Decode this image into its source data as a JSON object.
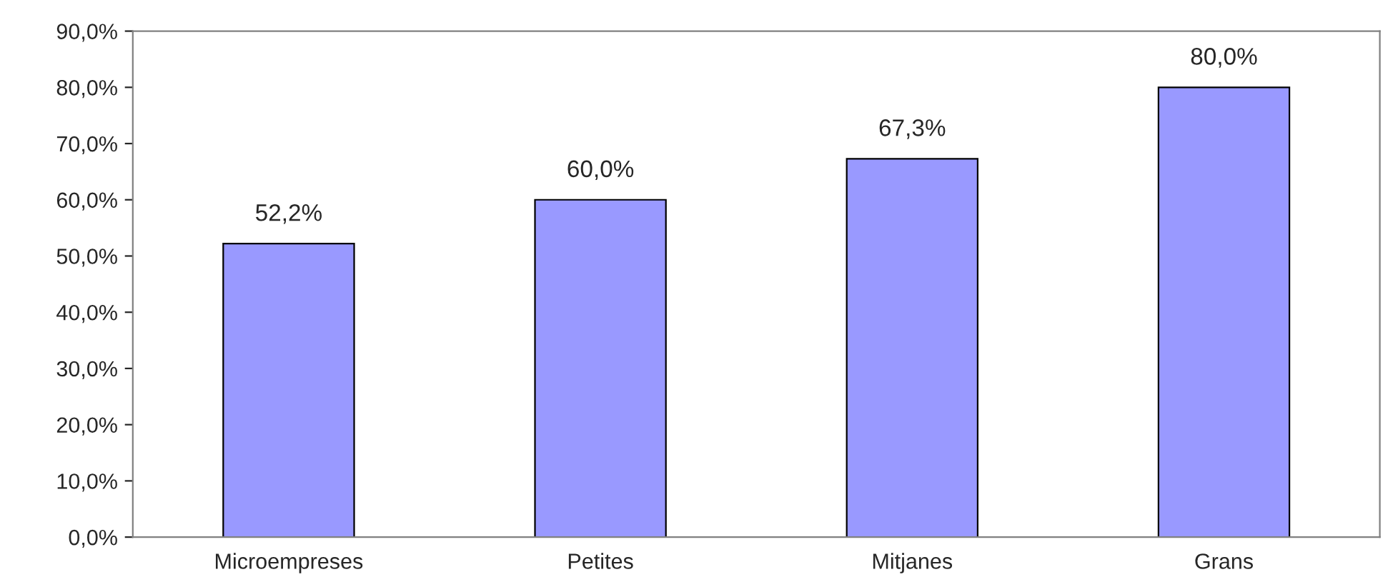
{
  "chart_data": {
    "type": "bar",
    "categories": [
      "Microempreses",
      "Petites",
      "Mitjanes",
      "Grans"
    ],
    "values": [
      52.2,
      60.0,
      67.3,
      80.0
    ],
    "color": "#9999ff",
    "value_labels": [
      "52,2%",
      "60,0%",
      "67,3%",
      "80,0%"
    ],
    "ylim": [
      0,
      90
    ],
    "yticks": [
      {
        "value": 0,
        "label": "0,0%"
      },
      {
        "value": 10,
        "label": "10,0%"
      },
      {
        "value": 20,
        "label": "20,0%"
      },
      {
        "value": 30,
        "label": "30,0%"
      },
      {
        "value": 40,
        "label": "40,0%"
      },
      {
        "value": 50,
        "label": "50,0%"
      },
      {
        "value": 60,
        "label": "60,0%"
      },
      {
        "value": 70,
        "label": "70,0%"
      },
      {
        "value": 80,
        "label": "80,0%"
      },
      {
        "value": 90,
        "label": "90,0%"
      }
    ],
    "grid": false
  }
}
